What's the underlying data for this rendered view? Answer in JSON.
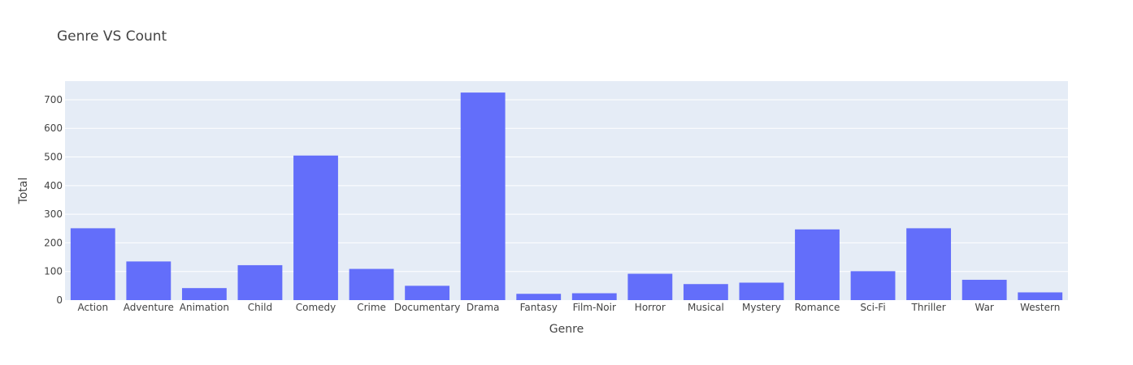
{
  "chart_data": {
    "type": "bar",
    "title": "Genre VS Count",
    "xlabel": "Genre",
    "ylabel": "Total",
    "categories": [
      "Action",
      "Adventure",
      "Animation",
      "Child",
      "Comedy",
      "Crime",
      "Documentary",
      "Drama",
      "Fantasy",
      "Film-Noir",
      "Horror",
      "Musical",
      "Mystery",
      "Romance",
      "Sci-Fi",
      "Thriller",
      "War",
      "Western"
    ],
    "values": [
      251,
      135,
      42,
      122,
      505,
      109,
      50,
      725,
      22,
      24,
      92,
      56,
      61,
      247,
      101,
      251,
      71,
      27
    ],
    "ylim": [
      0,
      765
    ],
    "yticks": [
      0,
      100,
      200,
      300,
      400,
      500,
      600,
      700
    ],
    "bar_color": "#636efa",
    "plot_background": "#e5ecf6",
    "grid": true,
    "legend": "none"
  }
}
